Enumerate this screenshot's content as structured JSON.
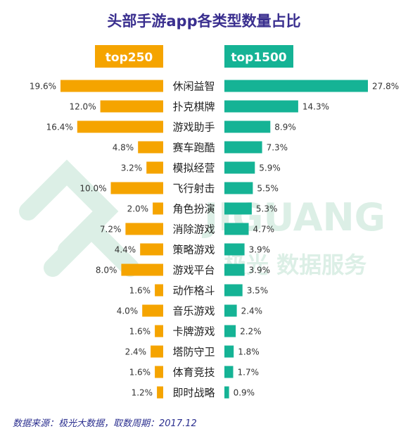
{
  "title": "头部手游app各类型数量占比",
  "colors": {
    "title": "#3a2f8f",
    "left_bar": "#f5a400",
    "right_bar": "#15b395",
    "label": "#333333",
    "watermark": "#dcefe6",
    "footer": "#2b2f8f"
  },
  "watermark": {
    "brand": "JIGUANG",
    "tagline": "极光 数据服务"
  },
  "footer": "数据来源：极光大数据，取数周期：2017.12",
  "chart_data": {
    "type": "bar",
    "orientation": "horizontal-butterfly",
    "categories": [
      "休闲益智",
      "扑克棋牌",
      "游戏助手",
      "赛车跑酷",
      "模拟经营",
      "飞行射击",
      "角色扮演",
      "消除游戏",
      "策略游戏",
      "游戏平台",
      "动作格斗",
      "音乐游戏",
      "卡牌游戏",
      "塔防守卫",
      "体育竞技",
      "即时战略"
    ],
    "series": [
      {
        "name": "top250",
        "values": [
          19.6,
          12.0,
          16.4,
          4.8,
          3.2,
          10.0,
          2.0,
          7.2,
          4.4,
          8.0,
          1.6,
          4.0,
          1.6,
          2.4,
          1.6,
          1.2
        ],
        "labels": [
          "19.6%",
          "12.0%",
          "16.4%",
          "4.8%",
          "3.2%",
          "10.0%",
          "2.0%",
          "7.2%",
          "4.4%",
          "8.0%",
          "1.6%",
          "4.0%",
          "1.6%",
          "2.4%",
          "1.6%",
          "1.2%"
        ]
      },
      {
        "name": "top1500",
        "values": [
          27.8,
          14.3,
          8.9,
          7.3,
          5.9,
          5.5,
          5.3,
          4.7,
          3.9,
          3.9,
          3.5,
          2.4,
          2.2,
          1.8,
          1.7,
          0.9
        ],
        "labels": [
          "27.8%",
          "14.3%",
          "8.9%",
          "7.3%",
          "5.9%",
          "5.5%",
          "5.3%",
          "4.7%",
          "3.9%",
          "3.9%",
          "3.5%",
          "2.4%",
          "2.2%",
          "1.8%",
          "1.7%",
          "0.9%"
        ]
      }
    ]
  }
}
